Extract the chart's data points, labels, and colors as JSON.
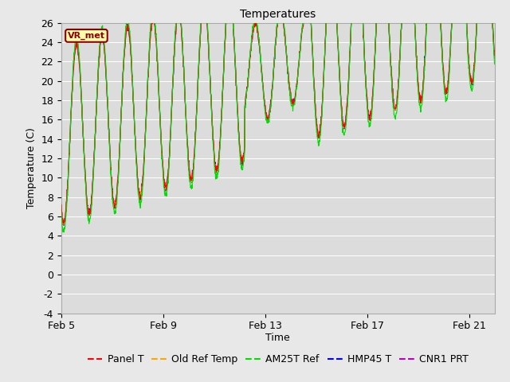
{
  "title": "Temperatures",
  "xlabel": "Time",
  "ylabel": "Temperature (C)",
  "ylim": [
    -4,
    26
  ],
  "yticks": [
    -4,
    -2,
    0,
    2,
    4,
    6,
    8,
    10,
    12,
    14,
    16,
    18,
    20,
    22,
    24,
    26
  ],
  "xtick_labels": [
    "Feb 5",
    "Feb 9",
    "Feb 13",
    "Feb 17",
    "Feb 21"
  ],
  "xtick_positions": [
    0,
    4,
    8,
    12,
    16
  ],
  "xlim": [
    0,
    17
  ],
  "annotation_text": "VR_met",
  "annotation_color": "#8B0000",
  "annotation_bg": "#FFFAAA",
  "fig_bg": "#E8E8E8",
  "plot_bg": "#DCDCDC",
  "grid_color": "#FFFFFF",
  "series_colors": {
    "Panel T": "#FF0000",
    "Old Ref Temp": "#FFA500",
    "AM25T Ref": "#00DD00",
    "HMP45 T": "#0000FF",
    "CNR1 PRT": "#BB00BB"
  },
  "series_linewidth": 0.8,
  "n_points": 1700,
  "title_fontsize": 10,
  "axis_fontsize": 9,
  "tick_fontsize": 9,
  "legend_fontsize": 9
}
